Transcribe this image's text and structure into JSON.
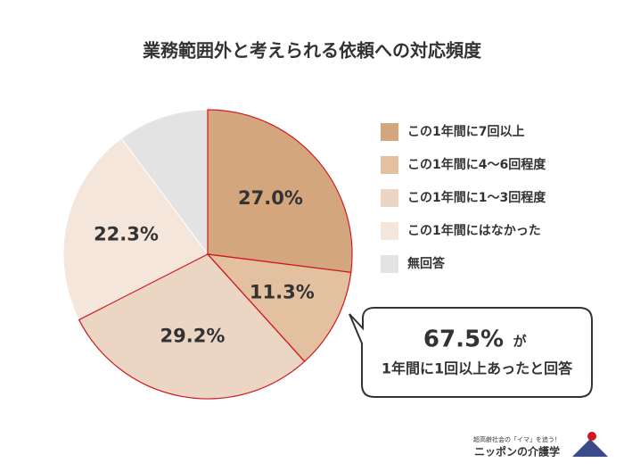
{
  "chart_data": {
    "type": "pie",
    "title": "業務範囲外と考えられる依頼への対応頻度",
    "categories": [
      "この1年間に7回以上",
      "この1年間に4〜6回程度",
      "この1年間に1〜3回程度",
      "この1年間にはなかった",
      "無回答"
    ],
    "values": [
      27.0,
      11.3,
      29.2,
      22.3,
      10.2
    ],
    "value_labels": [
      "27.0%",
      "11.3%",
      "29.2%",
      "22.3%",
      null
    ],
    "colors": [
      "#d4a67d",
      "#e3c0a0",
      "#ebd5c3",
      "#f4e6db",
      "#e3e3e3"
    ],
    "highlight_color": "#d0161e",
    "highlight_count": 3,
    "callout": {
      "value": "67.5%",
      "suffix": "が",
      "text": "1年間に1回以上あったと回答"
    }
  },
  "logo": {
    "tagline": "超高齢社会の「イマ」を追う！",
    "name": "ニッポンの介護学"
  }
}
